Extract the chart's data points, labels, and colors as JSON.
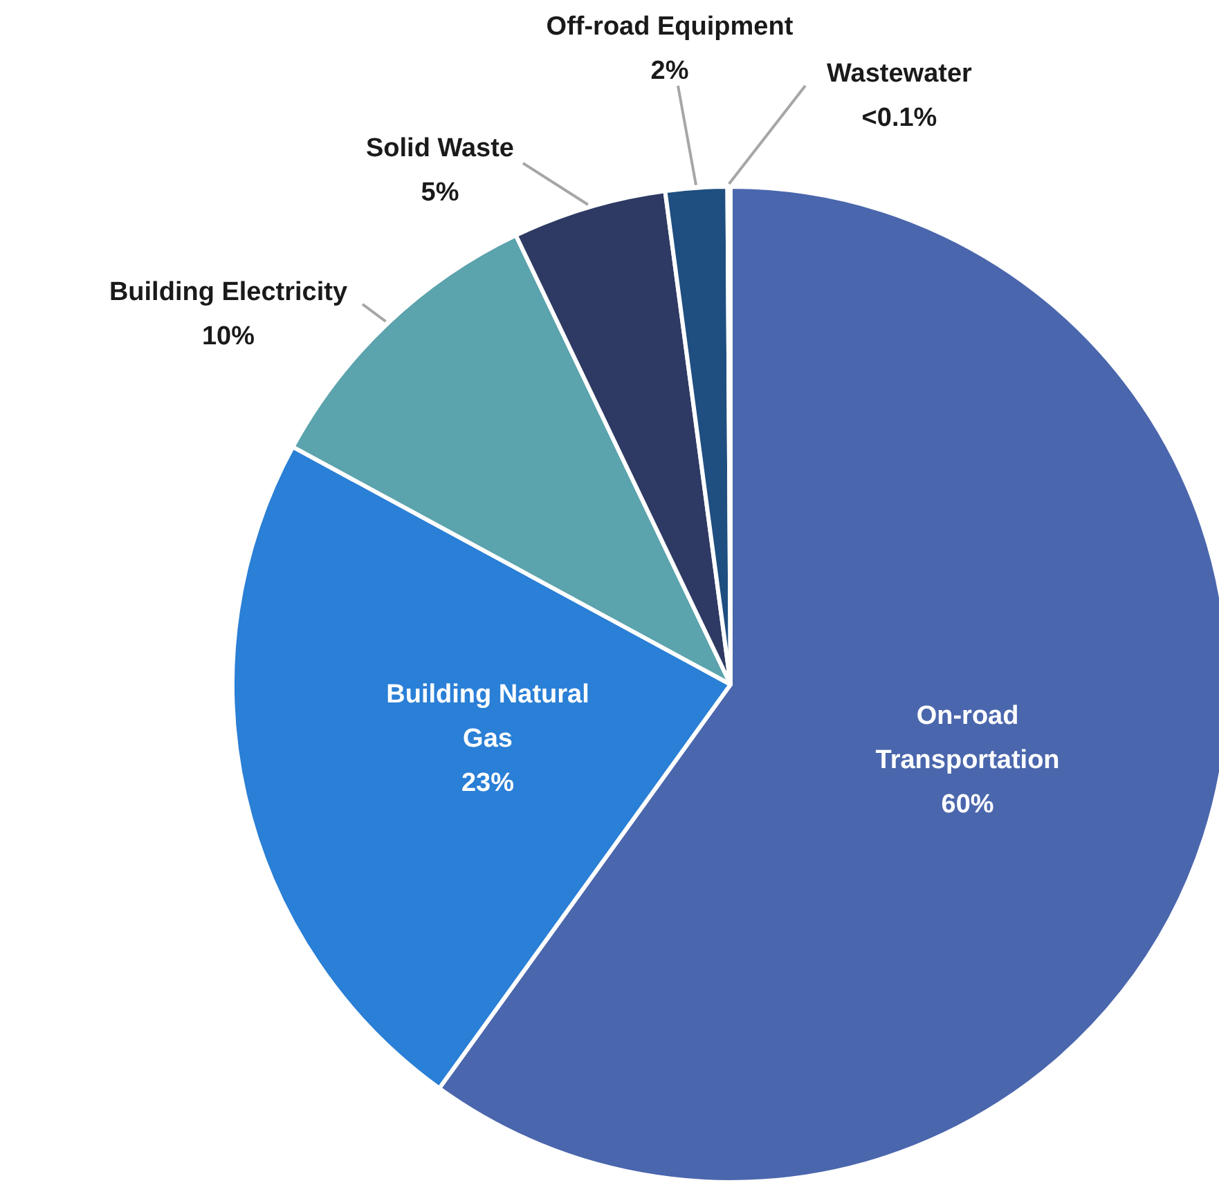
{
  "chart_data": {
    "type": "pie",
    "categories": [
      "On-road Transportation",
      "Building Natural Gas",
      "Building Electricity",
      "Solid Waste",
      "Off-road Equipment",
      "Wastewater"
    ],
    "values": [
      60,
      23,
      10,
      5,
      2,
      0.1
    ],
    "value_labels": [
      "60%",
      "23%",
      "10%",
      "5%",
      "2%",
      "<0.1%"
    ],
    "colors": [
      "#4a66ad",
      "#2a7fd6",
      "#5ba3ad",
      "#2e3a63",
      "#1f4e80",
      "#8fb0d8"
    ]
  }
}
